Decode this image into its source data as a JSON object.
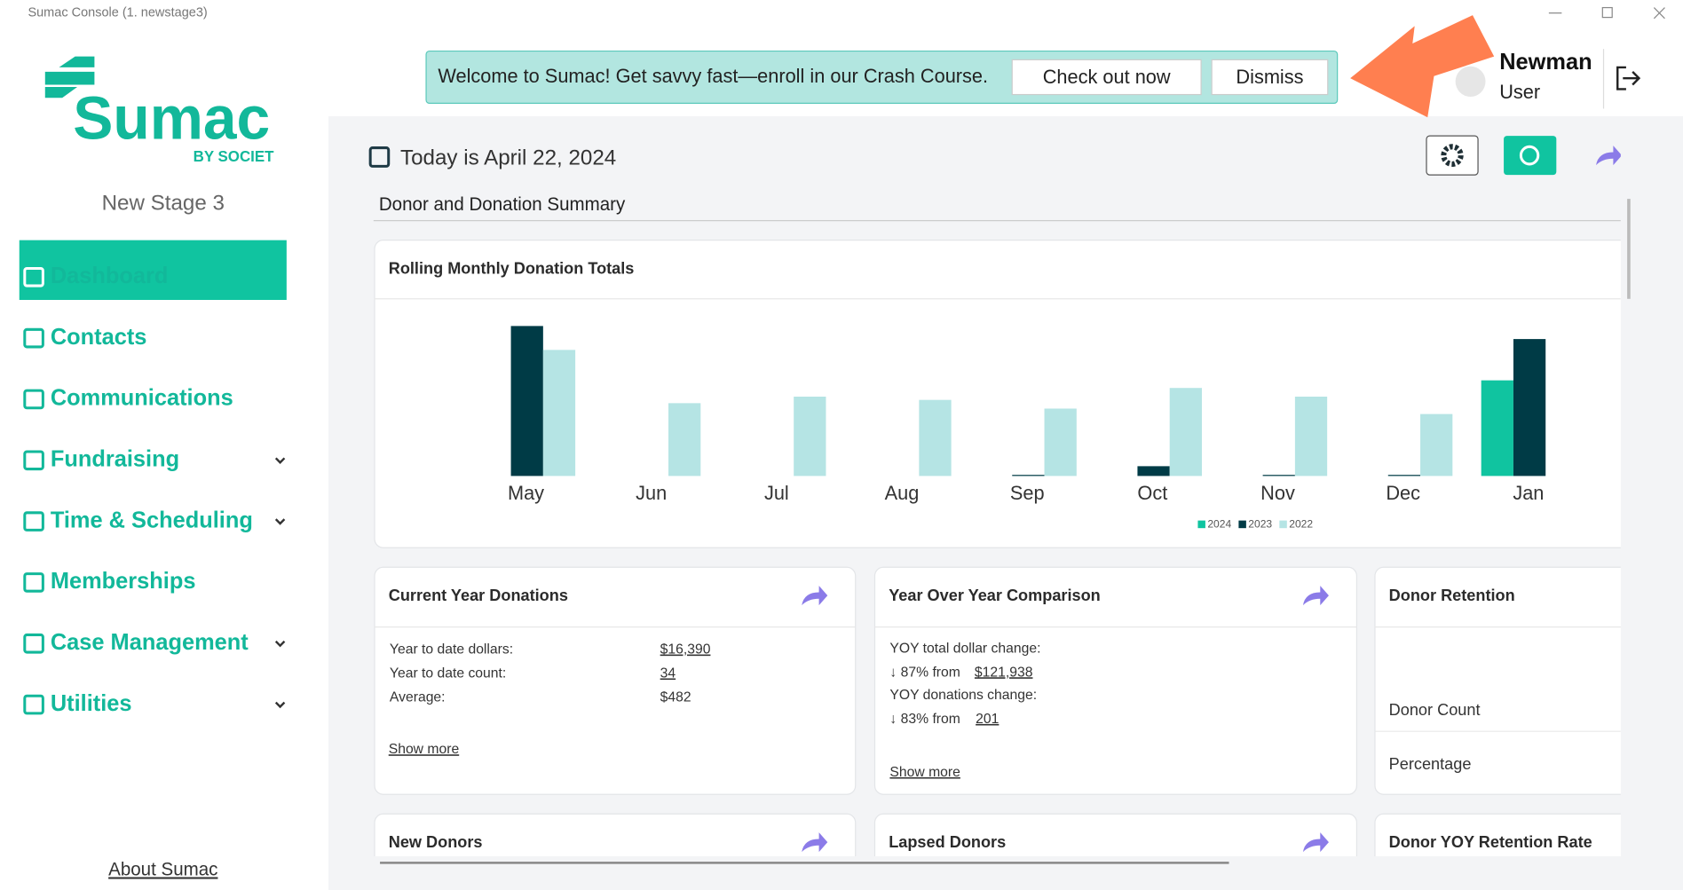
{
  "window_title": "Sumac Console (1. newstage3)",
  "sidebar": {
    "logo": "Sumac",
    "logo_sub": "BY SOCIET",
    "org": "New Stage 3",
    "nav": [
      "Dashboard",
      "Contacts",
      "Communications",
      "Fundraising",
      "Time & Scheduling",
      "Memberships",
      "Case Management",
      "Utilities"
    ],
    "about": "About Sumac"
  },
  "banner": {
    "message": "Welcome to Sumac! Get savvy fast—enroll in our Crash Course.",
    "buttons": [
      "Check out now",
      "Dismiss"
    ]
  },
  "user": {
    "name": "Newman",
    "role": "User"
  },
  "date": "Today is April 22, 2024",
  "section": "Donor and Donation Summary",
  "chart_data": {
    "type": "bar",
    "title": "Rolling Monthly Donation Totals",
    "categories": [
      "May",
      "Jun",
      "Jul",
      "Aug",
      "Sep",
      "Oct",
      "Nov",
      "Dec",
      "Jan"
    ],
    "series": [
      {
        "name": "2024",
        "color": "#10c4a0",
        "values": [
          0,
          0,
          0,
          0,
          0,
          0,
          0,
          0,
          88
        ]
      },
      {
        "name": "2023",
        "color": "#003b46",
        "values": [
          138,
          0,
          0,
          0,
          1,
          9,
          1,
          1,
          126
        ]
      },
      {
        "name": "2022",
        "color": "#b5e4e4",
        "values": [
          116,
          67,
          73,
          70,
          62,
          81,
          73,
          57,
          0
        ]
      }
    ],
    "ylim": [
      0,
      150
    ],
    "legend": "bottom"
  },
  "cards": [
    {
      "title": "Current Year Donations",
      "rows": [
        [
          "Year to date dollars:",
          "$16,390"
        ],
        [
          "Year to date count:",
          "34"
        ],
        [
          "Average:",
          "$482"
        ]
      ],
      "link": "Show more"
    },
    {
      "title": "Year Over Year Comparison",
      "lines": [
        "YOY total dollar change:",
        "↓ 87% from",
        "$121,938",
        "YOY donations change:",
        "↓ 83% from",
        "201"
      ],
      "link": "Show more"
    },
    {
      "title": "Donor Retention",
      "rows": [
        "Donor Count",
        "Percentage"
      ]
    },
    {
      "title": "New Donors"
    },
    {
      "title": "Lapsed Donors"
    },
    {
      "title": "Donor YOY Retention Rate"
    }
  ]
}
